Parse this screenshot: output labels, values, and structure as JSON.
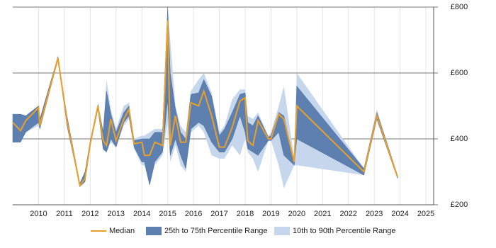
{
  "chart_data": {
    "type": "range-line",
    "x": [
      2009.0,
      2009.3,
      2009.5,
      2010.0,
      2010.05,
      2010.75,
      2011.1,
      2011.6,
      2011.8,
      2012.0,
      2012.3,
      2012.5,
      2012.63,
      2012.8,
      2013.0,
      2013.3,
      2013.5,
      2013.7,
      2014.0,
      2014.1,
      2014.3,
      2014.5,
      2014.8,
      2015.0,
      2015.1,
      2015.3,
      2015.5,
      2015.7,
      2015.9,
      2016.2,
      2016.4,
      2016.7,
      2017.0,
      2017.2,
      2017.5,
      2017.8,
      2018.0,
      2018.1,
      2018.3,
      2018.5,
      2018.9,
      2019.0,
      2019.3,
      2019.5,
      2019.9,
      2020.0,
      2022.6,
      2023.1,
      2023.9
    ],
    "series": [
      {
        "name": "Median",
        "color": "#e8a02a",
        "values": [
          450,
          425,
          455,
          495,
          440,
          645,
          455,
          258,
          280,
          385,
          500,
          395,
          380,
          460,
          395,
          460,
          490,
          385,
          390,
          350,
          350,
          390,
          380,
          760,
          380,
          470,
          390,
          390,
          510,
          500,
          545,
          470,
          375,
          375,
          435,
          515,
          525,
          395,
          380,
          455,
          400,
          400,
          475,
          460,
          330,
          500,
          300,
          470,
          285
        ]
      },
      {
        "name": "25th to 75th Percentile Range",
        "color": "#5e80b0",
        "lower": [
          390,
          390,
          420,
          450,
          430,
          640,
          440,
          255,
          270,
          380,
          490,
          370,
          360,
          400,
          375,
          450,
          470,
          375,
          330,
          330,
          260,
          330,
          360,
          520,
          350,
          400,
          350,
          310,
          430,
          450,
          440,
          390,
          360,
          360,
          400,
          470,
          420,
          370,
          360,
          350,
          395,
          395,
          420,
          350,
          320,
          400,
          290,
          460,
          280
        ],
        "upper": [
          475,
          475,
          470,
          500,
          460,
          650,
          470,
          265,
          300,
          395,
          505,
          420,
          545,
          475,
          420,
          480,
          500,
          395,
          400,
          400,
          400,
          420,
          420,
          800,
          600,
          490,
          420,
          400,
          535,
          540,
          580,
          530,
          410,
          430,
          480,
          535,
          540,
          450,
          440,
          470,
          405,
          410,
          480,
          470,
          330,
          560,
          310,
          480,
          290
        ]
      },
      {
        "name": "10th to 90th Percentile Range",
        "color": "#c6d7ed",
        "lower": [
          390,
          390,
          420,
          440,
          430,
          640,
          440,
          255,
          270,
          380,
          490,
          365,
          360,
          390,
          375,
          440,
          460,
          370,
          320,
          320,
          260,
          320,
          350,
          450,
          330,
          380,
          320,
          300,
          420,
          440,
          420,
          350,
          340,
          340,
          380,
          350,
          400,
          360,
          340,
          300,
          395,
          395,
          320,
          250,
          320,
          320,
          290,
          460,
          280
        ],
        "upper": [
          475,
          475,
          470,
          500,
          460,
          650,
          470,
          265,
          300,
          395,
          505,
          430,
          580,
          490,
          430,
          500,
          510,
          400,
          410,
          410,
          420,
          430,
          430,
          790,
          700,
          500,
          440,
          420,
          545,
          580,
          600,
          540,
          420,
          440,
          520,
          550,
          550,
          470,
          460,
          480,
          410,
          420,
          500,
          560,
          340,
          600,
          310,
          490,
          290
        ]
      }
    ],
    "xlim": [
      2009,
      2025.3
    ],
    "xticks": [
      2010,
      2011,
      2012,
      2013,
      2014,
      2015,
      2016,
      2017,
      2018,
      2019,
      2020,
      2021,
      2022,
      2023,
      2024,
      2025
    ],
    "ylim": [
      200,
      800
    ],
    "yticks": [
      {
        "value": 200,
        "label": "£200"
      },
      {
        "value": 400,
        "label": "£400"
      },
      {
        "value": 600,
        "label": "£600"
      },
      {
        "value": 800,
        "label": "£800"
      }
    ],
    "grid": true
  }
}
